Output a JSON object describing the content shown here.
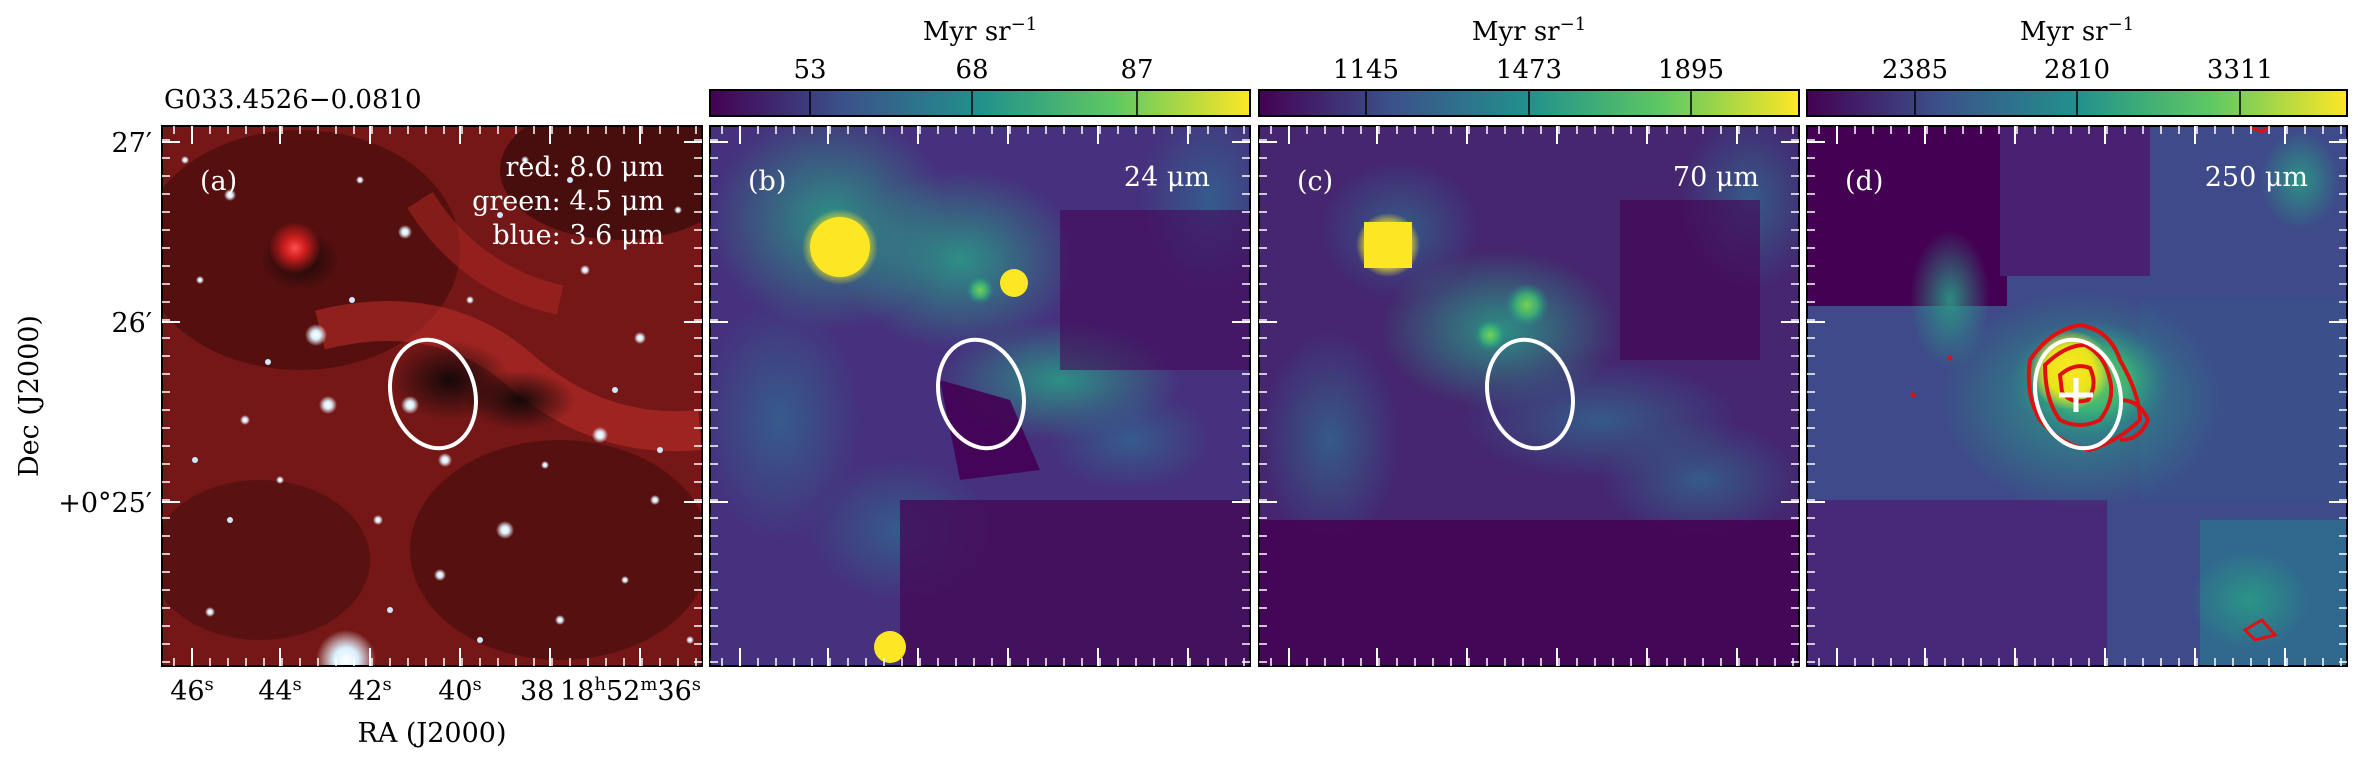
{
  "source_name": "G033.4526−0.0810",
  "panels": [
    {
      "letter": "(a)",
      "band_lines": [
        "red: 8.0 μm",
        "green: 4.5 μm",
        "blue: 3.6 μm"
      ]
    },
    {
      "letter": "(b)",
      "band": "24 μm",
      "colorbar": {
        "unit": "Myr sr",
        "unit_exp": "−1",
        "ticks": [
          "53",
          "68",
          "87"
        ]
      }
    },
    {
      "letter": "(c)",
      "band": "70 μm",
      "colorbar": {
        "unit": "Myr sr",
        "unit_exp": "−1",
        "ticks": [
          "1145",
          "1473",
          "1895"
        ]
      }
    },
    {
      "letter": "(d)",
      "band": "250 μm",
      "colorbar": {
        "unit": "Myr sr",
        "unit_exp": "−1",
        "ticks": [
          "2385",
          "2810",
          "3311"
        ]
      }
    }
  ],
  "axes": {
    "ylabel": "Dec (J2000)",
    "xlabel": "RA (J2000)",
    "yticks": [
      "27′",
      "26′",
      "+0°25′"
    ],
    "xticks": [
      {
        "main": "46",
        "sup": "s"
      },
      {
        "main": "44",
        "sup": "s"
      },
      {
        "main": "42",
        "sup": "s"
      },
      {
        "main": "40",
        "sup": "s"
      },
      {
        "main": "38",
        "sup": ""
      }
    ],
    "xtick_last": {
      "h": "18",
      "m": "52",
      "s": "36"
    }
  },
  "colors": {
    "viridis_dark": "#440154",
    "viridis_mid": "#21918c",
    "viridis_yellow": "#fde725",
    "contour": "#e01010",
    "ellipse": "#ffffff"
  }
}
